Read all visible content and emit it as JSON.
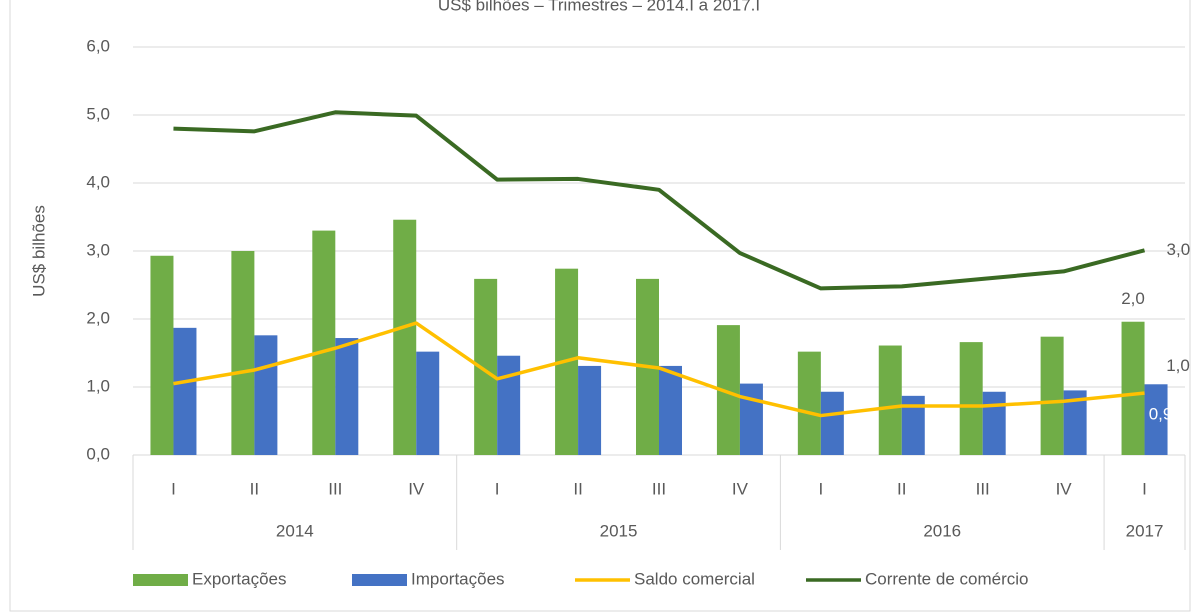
{
  "chart_data": {
    "type": "bar",
    "title": "US$ bilhões – Trimestres – 2014.I a 2017.I",
    "y_label": "US$ bilhões",
    "categories": [
      "I",
      "II",
      "III",
      "IV",
      "I",
      "II",
      "III",
      "IV",
      "I",
      "II",
      "III",
      "IV",
      "I"
    ],
    "x_groups": [
      {
        "name": "2014",
        "span": 4
      },
      {
        "name": "2015",
        "span": 4
      },
      {
        "name": "2016",
        "span": 4
      },
      {
        "name": "2017",
        "span": 1
      }
    ],
    "series": [
      {
        "name": "Exportações",
        "type": "bar",
        "color": "#70ad47",
        "values": [
          2.93,
          3.0,
          3.3,
          3.46,
          2.59,
          2.74,
          2.59,
          1.91,
          1.52,
          1.61,
          1.66,
          1.74,
          1.96
        ],
        "value_labels": [
          null,
          null,
          null,
          null,
          null,
          null,
          null,
          null,
          null,
          null,
          null,
          null,
          "2,0"
        ]
      },
      {
        "name": "Importações",
        "type": "bar",
        "color": "#4472c4",
        "values": [
          1.87,
          1.76,
          1.72,
          1.52,
          1.46,
          1.31,
          1.31,
          1.05,
          0.93,
          0.87,
          0.93,
          0.95,
          1.04
        ],
        "value_labels": [
          null,
          null,
          null,
          null,
          null,
          null,
          null,
          null,
          null,
          null,
          null,
          null,
          "1,0"
        ]
      },
      {
        "name": "Saldo comercial",
        "type": "line",
        "color": "#ffc000",
        "values": [
          1.05,
          1.25,
          1.57,
          1.94,
          1.12,
          1.43,
          1.28,
          0.86,
          0.58,
          0.72,
          0.72,
          0.79,
          0.91
        ],
        "value_labels": [
          null,
          null,
          null,
          null,
          null,
          null,
          null,
          null,
          null,
          null,
          null,
          null,
          "0,9"
        ]
      },
      {
        "name": "Corrente de comércio",
        "type": "line",
        "color": "#3a6a23",
        "values": [
          4.8,
          4.76,
          5.04,
          4.99,
          4.05,
          4.06,
          3.9,
          2.97,
          2.45,
          2.48,
          2.59,
          2.7,
          3.01
        ],
        "value_labels": [
          null,
          null,
          null,
          null,
          null,
          null,
          null,
          null,
          null,
          null,
          null,
          null,
          "3,0"
        ]
      }
    ],
    "ylim": [
      0,
      6
    ],
    "yticks": [
      {
        "value": 0,
        "label": "0,0"
      },
      {
        "value": 1,
        "label": "1,0"
      },
      {
        "value": 2,
        "label": "2,0"
      },
      {
        "value": 3,
        "label": "3,0"
      },
      {
        "value": 4,
        "label": "4,0"
      },
      {
        "value": 5,
        "label": "5,0"
      },
      {
        "value": 6,
        "label": "6,0"
      }
    ],
    "grid": true,
    "legend": "bottom"
  }
}
